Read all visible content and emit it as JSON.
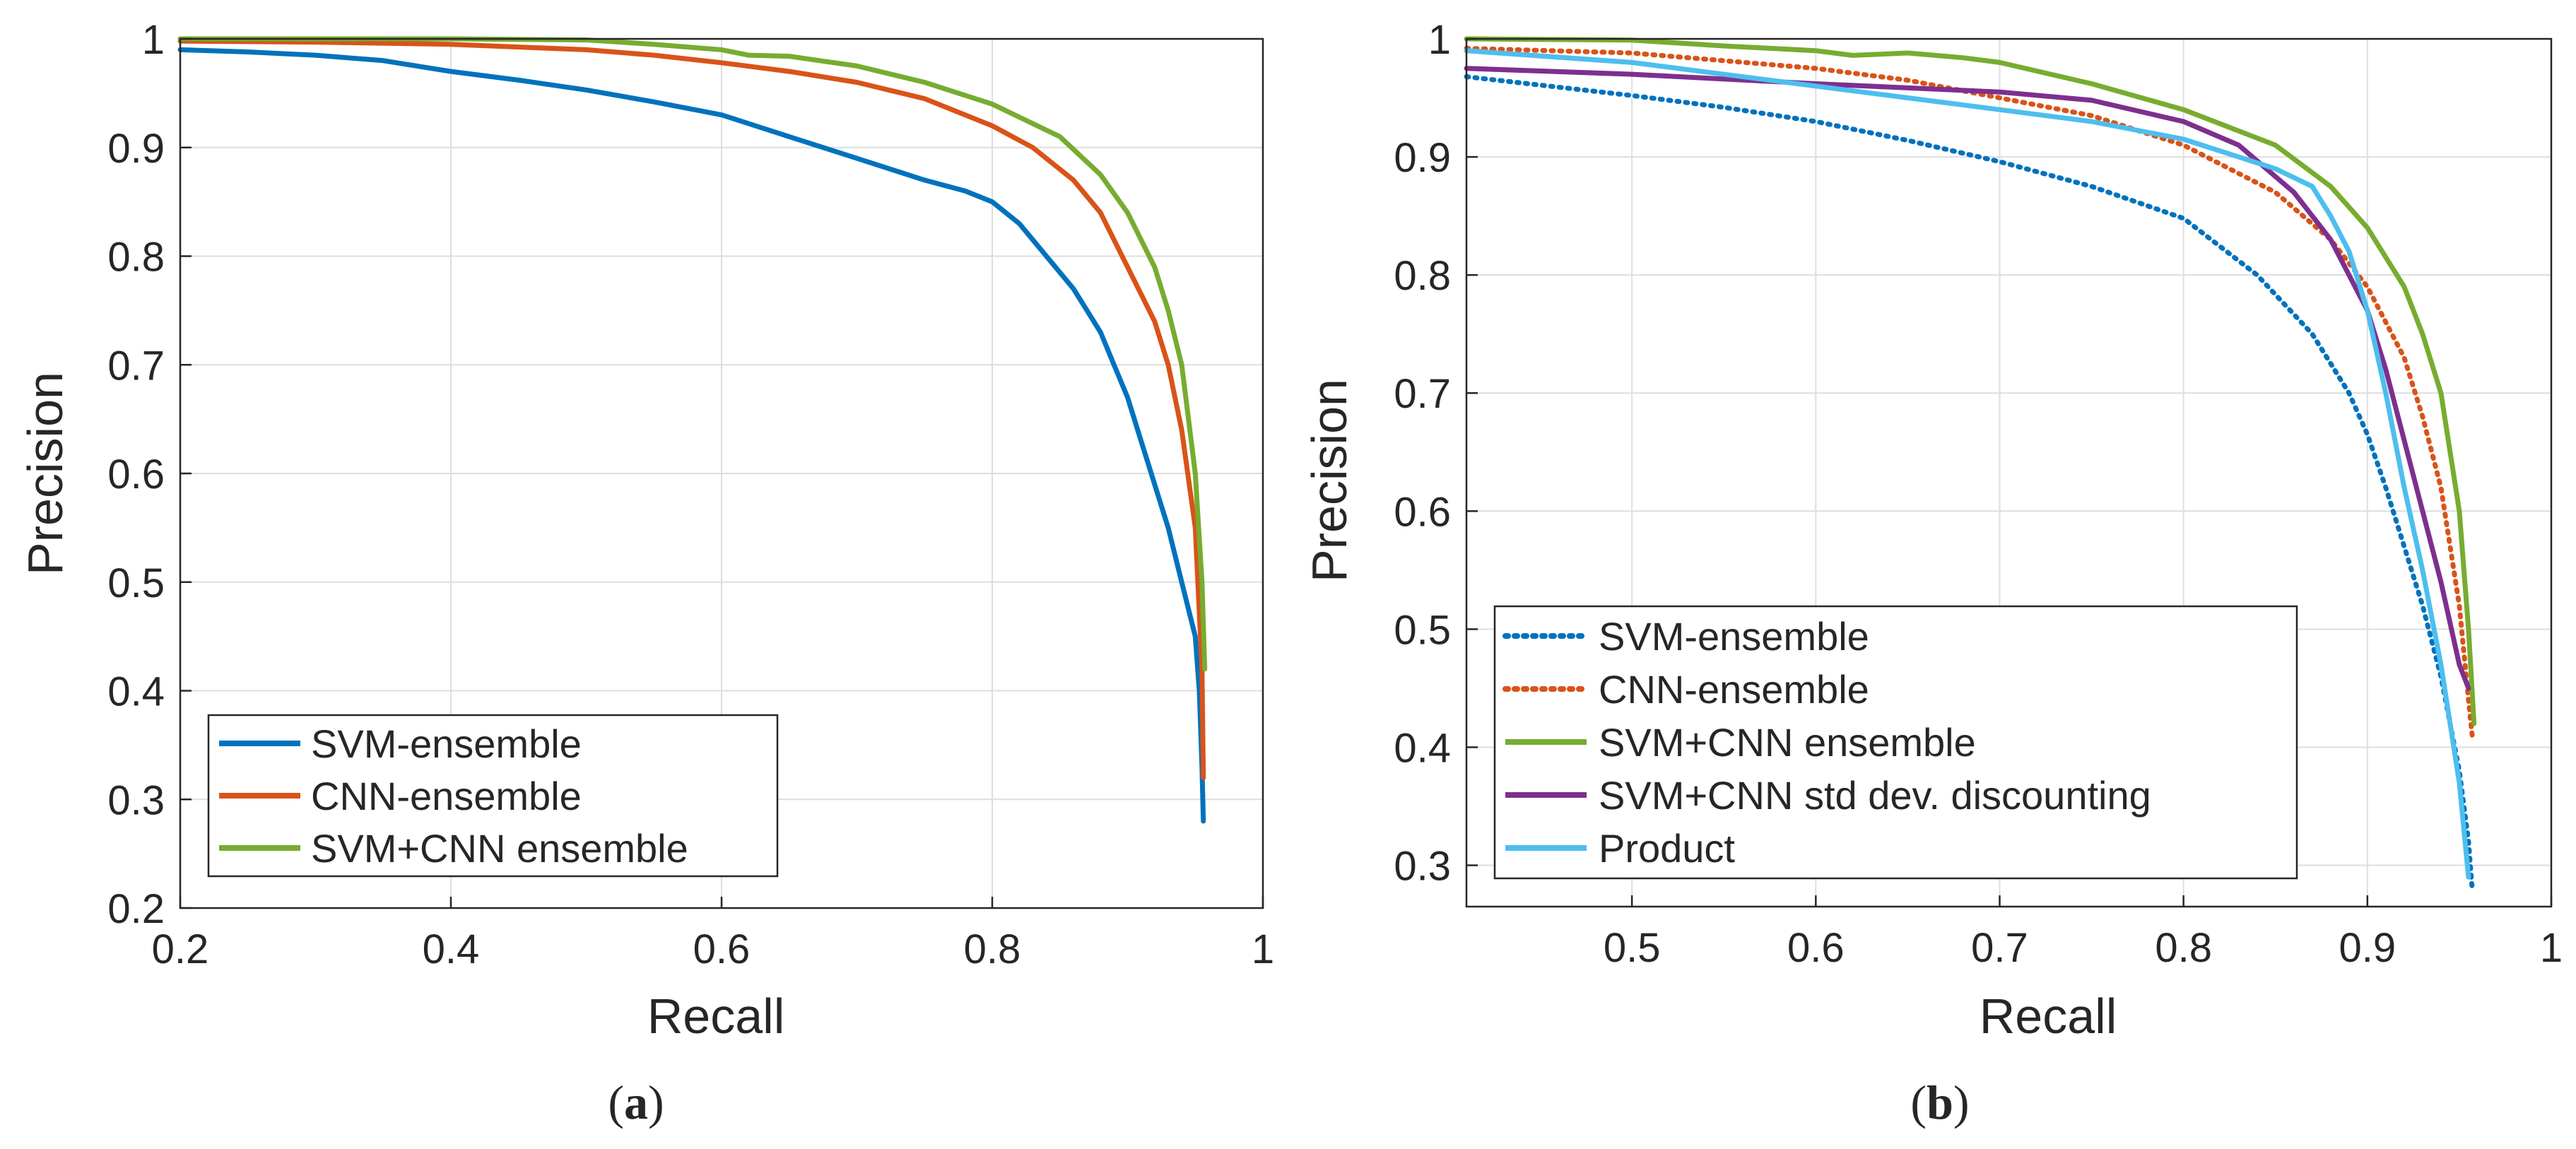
{
  "charts": [
    {
      "id": "a",
      "subcaption_open": "(",
      "subcaption_letter": "a",
      "subcaption_close": ")",
      "xlabel": "Recall",
      "ylabel": "Precision",
      "xlim": [
        0.2,
        1
      ],
      "ylim": [
        0.2,
        1
      ],
      "xticks": [
        0.2,
        0.4,
        0.6,
        0.8,
        1
      ],
      "xtick_labels": [
        "0.2",
        "0.4",
        "0.6",
        "0.8",
        "1"
      ],
      "yticks": [
        0.2,
        0.3,
        0.4,
        0.5,
        0.6,
        0.7,
        0.8,
        0.9,
        1
      ],
      "ytick_labels": [
        "0.2",
        "0.3",
        "0.4",
        "0.5",
        "0.6",
        "0.7",
        "0.8",
        "0.9",
        "1"
      ],
      "grid": true,
      "legend_position": "bottom-left"
    },
    {
      "id": "b",
      "subcaption_open": "(",
      "subcaption_letter": "b",
      "subcaption_close": ")",
      "xlabel": "Recall",
      "ylabel": "Precision",
      "xlim": [
        0.41,
        1
      ],
      "ylim": [
        0.265,
        1
      ],
      "xticks": [
        0.5,
        0.6,
        0.7,
        0.8,
        0.9,
        1
      ],
      "xtick_labels": [
        "0.5",
        "0.6",
        "0.7",
        "0.8",
        "0.9",
        "1"
      ],
      "yticks": [
        0.3,
        0.4,
        0.5,
        0.6,
        0.7,
        0.8,
        0.9,
        1
      ],
      "ytick_labels": [
        "0.3",
        "0.4",
        "0.5",
        "0.6",
        "0.7",
        "0.8",
        "0.9",
        "1"
      ],
      "grid": true,
      "legend_position": "bottom-left"
    }
  ],
  "chart_data": [
    {
      "type": "line",
      "title": "",
      "xlabel": "Recall",
      "ylabel": "Precision",
      "xlim": [
        0.2,
        1
      ],
      "ylim": [
        0.2,
        1
      ],
      "series": [
        {
          "name": "SVM-ensemble",
          "color": "#0072BD",
          "style": "solid",
          "x": [
            0.2,
            0.25,
            0.3,
            0.35,
            0.4,
            0.45,
            0.5,
            0.55,
            0.6,
            0.65,
            0.7,
            0.75,
            0.78,
            0.8,
            0.82,
            0.84,
            0.86,
            0.88,
            0.89,
            0.9,
            0.91,
            0.92,
            0.93,
            0.94,
            0.95,
            0.953,
            0.955,
            0.956
          ],
          "y": [
            0.99,
            0.988,
            0.985,
            0.98,
            0.97,
            0.962,
            0.953,
            0.942,
            0.93,
            0.91,
            0.89,
            0.87,
            0.86,
            0.85,
            0.83,
            0.8,
            0.77,
            0.73,
            0.7,
            0.67,
            0.63,
            0.59,
            0.55,
            0.5,
            0.45,
            0.4,
            0.33,
            0.28
          ]
        },
        {
          "name": "CNN-ensemble",
          "color": "#D95319",
          "style": "solid",
          "x": [
            0.2,
            0.3,
            0.4,
            0.5,
            0.55,
            0.6,
            0.65,
            0.7,
            0.75,
            0.8,
            0.83,
            0.86,
            0.88,
            0.9,
            0.92,
            0.93,
            0.94,
            0.95,
            0.955,
            0.956
          ],
          "y": [
            0.998,
            0.997,
            0.995,
            0.99,
            0.985,
            0.978,
            0.97,
            0.96,
            0.945,
            0.92,
            0.9,
            0.87,
            0.84,
            0.79,
            0.74,
            0.7,
            0.64,
            0.55,
            0.42,
            0.32
          ]
        },
        {
          "name": "SVM+CNN ensemble",
          "color": "#77AC30",
          "style": "solid",
          "x": [
            0.2,
            0.3,
            0.4,
            0.5,
            0.55,
            0.6,
            0.62,
            0.65,
            0.7,
            0.75,
            0.8,
            0.85,
            0.88,
            0.9,
            0.92,
            0.93,
            0.94,
            0.95,
            0.955,
            0.957
          ],
          "y": [
            1.0,
            1.0,
            1.0,
            0.999,
            0.995,
            0.99,
            0.985,
            0.984,
            0.975,
            0.96,
            0.94,
            0.91,
            0.875,
            0.84,
            0.79,
            0.75,
            0.7,
            0.6,
            0.5,
            0.42
          ]
        }
      ]
    },
    {
      "type": "line",
      "title": "",
      "xlabel": "Recall",
      "ylabel": "Precision",
      "xlim": [
        0.41,
        1
      ],
      "ylim": [
        0.265,
        1
      ],
      "series": [
        {
          "name": "SVM-ensemble",
          "color": "#0072BD",
          "style": "dotted",
          "x": [
            0.41,
            0.5,
            0.55,
            0.6,
            0.65,
            0.7,
            0.75,
            0.8,
            0.84,
            0.87,
            0.89,
            0.9,
            0.91,
            0.92,
            0.93,
            0.94,
            0.95,
            0.955,
            0.957
          ],
          "y": [
            0.968,
            0.952,
            0.942,
            0.93,
            0.914,
            0.896,
            0.875,
            0.848,
            0.8,
            0.75,
            0.7,
            0.665,
            0.62,
            0.57,
            0.52,
            0.46,
            0.38,
            0.32,
            0.28
          ]
        },
        {
          "name": "CNN-ensemble",
          "color": "#D95319",
          "style": "dotted",
          "x": [
            0.41,
            0.5,
            0.6,
            0.65,
            0.7,
            0.75,
            0.8,
            0.85,
            0.88,
            0.9,
            0.92,
            0.93,
            0.94,
            0.95,
            0.955,
            0.957
          ],
          "y": [
            0.992,
            0.988,
            0.975,
            0.965,
            0.95,
            0.935,
            0.91,
            0.87,
            0.83,
            0.79,
            0.73,
            0.68,
            0.62,
            0.52,
            0.44,
            0.41
          ]
        },
        {
          "name": "SVM+CNN ensemble",
          "color": "#77AC30",
          "style": "solid",
          "x": [
            0.41,
            0.5,
            0.55,
            0.6,
            0.62,
            0.65,
            0.68,
            0.7,
            0.75,
            0.8,
            0.85,
            0.88,
            0.9,
            0.92,
            0.93,
            0.94,
            0.95,
            0.955,
            0.958
          ],
          "y": [
            1.0,
            0.999,
            0.994,
            0.99,
            0.986,
            0.988,
            0.984,
            0.98,
            0.962,
            0.94,
            0.91,
            0.875,
            0.84,
            0.79,
            0.75,
            0.7,
            0.6,
            0.5,
            0.42
          ]
        },
        {
          "name": "SVM+CNN std dev. discounting",
          "color": "#7E2F8E",
          "style": "solid",
          "x": [
            0.41,
            0.5,
            0.6,
            0.7,
            0.75,
            0.8,
            0.83,
            0.86,
            0.88,
            0.89,
            0.9,
            0.91,
            0.92,
            0.93,
            0.94,
            0.95,
            0.955
          ],
          "y": [
            0.975,
            0.97,
            0.962,
            0.955,
            0.948,
            0.93,
            0.91,
            0.87,
            0.83,
            0.8,
            0.77,
            0.72,
            0.66,
            0.6,
            0.54,
            0.47,
            0.45
          ]
        },
        {
          "name": "Product",
          "color": "#4DBEEE",
          "style": "solid",
          "x": [
            0.41,
            0.5,
            0.6,
            0.7,
            0.75,
            0.8,
            0.85,
            0.87,
            0.88,
            0.89,
            0.9,
            0.91,
            0.92,
            0.93,
            0.94,
            0.95,
            0.955
          ],
          "y": [
            0.99,
            0.98,
            0.96,
            0.94,
            0.93,
            0.915,
            0.89,
            0.875,
            0.85,
            0.82,
            0.77,
            0.7,
            0.62,
            0.55,
            0.47,
            0.37,
            0.29
          ]
        }
      ]
    }
  ]
}
